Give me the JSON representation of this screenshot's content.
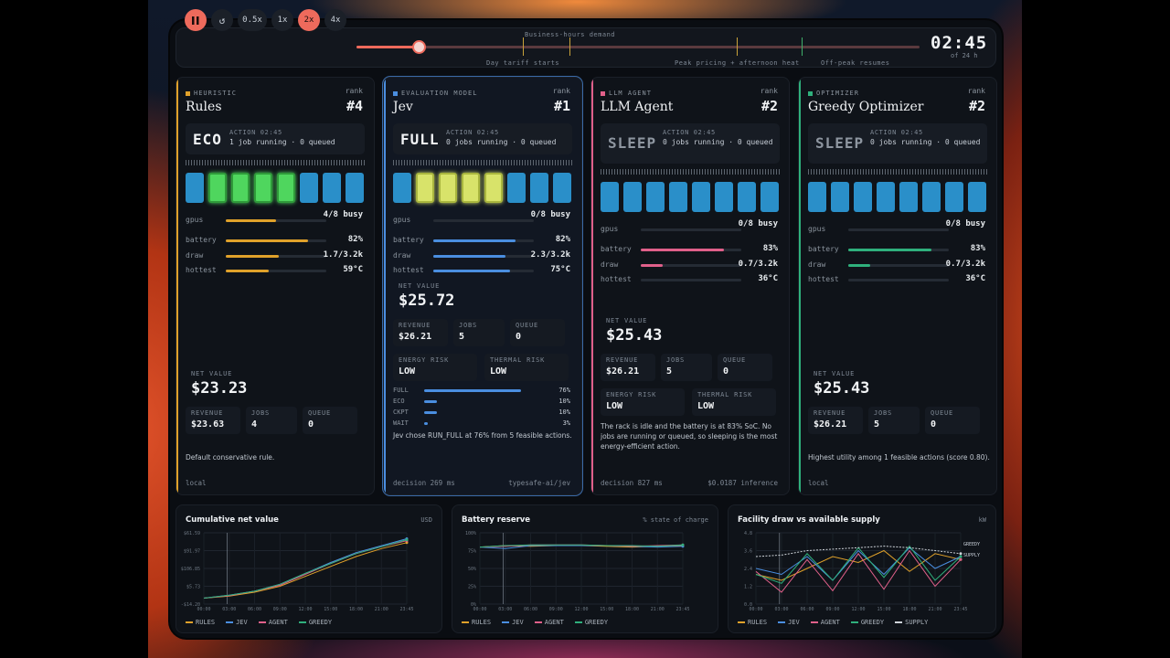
{
  "toolbar": {
    "pause_icon": "pause-icon",
    "restart_icon": "restart-icon",
    "speeds": [
      "0.5x",
      "1x",
      "2x",
      "4x"
    ],
    "active_speed": "2x",
    "progress": 0.11,
    "events": [
      {
        "label": "Business-hours demand",
        "at": 0.296,
        "pos": "top"
      },
      {
        "label": "Day tariff starts",
        "at": 0.296,
        "pos": "bottom"
      },
      {
        "label": "Peak pricing + afternoon heat",
        "at": 0.675,
        "pos": "bottom"
      },
      {
        "label": "Off-peak resumes",
        "at": 0.79,
        "pos": "bottom"
      }
    ],
    "clock": "02:45",
    "clock_sub": "of 24 h"
  },
  "panels": [
    {
      "category": "HEURISTIC",
      "name": "Rules",
      "rank_label": "rank",
      "rank": "#4",
      "accent": "#e0a12a",
      "action": {
        "word": "ECO",
        "caption": "ACTION 02:45",
        "detail": "1 job running · 0 queued"
      },
      "gpus_busy": 4,
      "gpus_total": 8,
      "metrics": [
        {
          "label": "gpus",
          "value": "4/8 busy",
          "fill": 0.5
        },
        {
          "label": "battery",
          "value": "82%",
          "fill": 0.82
        },
        {
          "label": "draw",
          "value": "1.7/3.2k",
          "fill": 0.53
        },
        {
          "label": "hottest",
          "value": "59°C",
          "fill": 0.43
        }
      ],
      "net": {
        "caption": "NET VALUE",
        "value": "$23.23"
      },
      "stats": [
        {
          "caption": "REVENUE",
          "value": "$23.63"
        },
        {
          "caption": "JOBS",
          "value": "4"
        },
        {
          "caption": "QUEUE",
          "value": "0"
        }
      ],
      "note": "Default conservative rule.",
      "foot_left": "local",
      "foot_right": ""
    },
    {
      "category": "EVALUATION MODEL",
      "name": "Jev",
      "rank_label": "rank",
      "rank": "#1",
      "accent": "#4a8ee0",
      "action": {
        "word": "FULL",
        "caption": "ACTION 02:45",
        "detail": "0 jobs running · 0 queued"
      },
      "gpus_busy": 0,
      "gpus_total": 8,
      "metrics": [
        {
          "label": "gpus",
          "value": "0/8 busy",
          "fill": 0
        },
        {
          "label": "battery",
          "value": "82%",
          "fill": 0.82
        },
        {
          "label": "draw",
          "value": "2.3/3.2k",
          "fill": 0.72
        },
        {
          "label": "hottest",
          "value": "75°C",
          "fill": 0.76
        }
      ],
      "net": {
        "caption": "NET VALUE",
        "value": "$25.72"
      },
      "stats": [
        {
          "caption": "REVENUE",
          "value": "$26.21"
        },
        {
          "caption": "JOBS",
          "value": "5"
        },
        {
          "caption": "QUEUE",
          "value": "0"
        }
      ],
      "risks": [
        {
          "caption": "ENERGY RISK",
          "value": "LOW"
        },
        {
          "caption": "THERMAL RISK",
          "value": "LOW"
        }
      ],
      "dist": [
        {
          "label": "FULL",
          "value": "76%",
          "frac": 0.76
        },
        {
          "label": "ECO",
          "value": "10%",
          "frac": 0.1
        },
        {
          "label": "CKPT",
          "value": "10%",
          "frac": 0.1
        },
        {
          "label": "WAIT",
          "value": "3%",
          "frac": 0.03
        }
      ],
      "note": "Jev chose RUN_FULL at 76% from 5 feasible actions.",
      "foot_left": "decision 269 ms",
      "foot_right": "typesafe-ai/jev"
    },
    {
      "category": "LLM AGENT",
      "name": "LLM Agent",
      "rank_label": "rank",
      "rank": "#2",
      "accent": "#e0608a",
      "action": {
        "word": "SLEEP",
        "caption": "ACTION 02:45",
        "detail": "0 jobs running · 0 queued"
      },
      "gpus_busy": 0,
      "gpus_total": 8,
      "metrics": [
        {
          "label": "gpus",
          "value": "0/8 busy",
          "fill": 0
        },
        {
          "label": "battery",
          "value": "83%",
          "fill": 0.83
        },
        {
          "label": "draw",
          "value": "0.7/3.2k",
          "fill": 0.22
        },
        {
          "label": "hottest",
          "value": "36°C",
          "fill": 0
        }
      ],
      "net": {
        "caption": "NET VALUE",
        "value": "$25.43"
      },
      "stats": [
        {
          "caption": "REVENUE",
          "value": "$26.21"
        },
        {
          "caption": "JOBS",
          "value": "5"
        },
        {
          "caption": "QUEUE",
          "value": "0"
        }
      ],
      "risks": [
        {
          "caption": "ENERGY RISK",
          "value": "LOW"
        },
        {
          "caption": "THERMAL RISK",
          "value": "LOW"
        }
      ],
      "note": "The rack is idle and the battery is at 83% SoC. No jobs are running or queued, so sleeping is the most energy-efficient action.",
      "foot_left": "decision 827 ms",
      "foot_right": "$0.0187 inference"
    },
    {
      "category": "OPTIMIZER",
      "name": "Greedy Optimizer",
      "rank_label": "rank",
      "rank": "#2",
      "accent": "#2fb07c",
      "action": {
        "word": "SLEEP",
        "caption": "ACTION 02:45",
        "detail": "0 jobs running · 0 queued"
      },
      "gpus_busy": 0,
      "gpus_total": 8,
      "metrics": [
        {
          "label": "gpus",
          "value": "0/8 busy",
          "fill": 0
        },
        {
          "label": "battery",
          "value": "83%",
          "fill": 0.83
        },
        {
          "label": "draw",
          "value": "0.7/3.2k",
          "fill": 0.22
        },
        {
          "label": "hottest",
          "value": "36°C",
          "fill": 0
        }
      ],
      "net": {
        "caption": "NET VALUE",
        "value": "$25.43"
      },
      "stats": [
        {
          "caption": "REVENUE",
          "value": "$26.21"
        },
        {
          "caption": "JOBS",
          "value": "5"
        },
        {
          "caption": "QUEUE",
          "value": "0"
        }
      ],
      "note": "Highest utility among 1 feasible actions (score 0.80).",
      "foot_left": "local",
      "foot_right": ""
    }
  ],
  "colors": {
    "rules": "#e0a12a",
    "jev": "#4a8ee0",
    "agent": "#e0608a",
    "greedy": "#2fb07c",
    "supply": "#cfd4da",
    "gpu_idle": "#2a8fc9",
    "gpu_eco": "#4fd65e",
    "gpu_full": "#d8e36a"
  },
  "charts": [
    {
      "title": "Cumulative net value",
      "unit": "USD",
      "yticks": [
        "$61.59",
        "$91.97",
        "$106.85",
        "$5.73",
        "-$14.20"
      ],
      "xticks": [
        "00:00",
        "03:00",
        "06:00",
        "09:00",
        "12:00",
        "15:00",
        "18:00",
        "21:00",
        "23:45"
      ],
      "legend": [
        "RULES",
        "JEV",
        "AGENT",
        "GREEDY"
      ]
    },
    {
      "title": "Battery reserve",
      "unit": "% state of charge",
      "yticks": [
        "100%",
        "75%",
        "50%",
        "25%",
        "0%"
      ],
      "xticks": [
        "00:00",
        "03:00",
        "06:00",
        "09:00",
        "12:00",
        "15:00",
        "18:00",
        "21:00",
        "23:45"
      ],
      "legend": [
        "RULES",
        "JEV",
        "AGENT",
        "GREEDY"
      ]
    },
    {
      "title": "Facility draw vs available supply",
      "unit": "kW",
      "yticks": [
        "4.8",
        "3.6",
        "2.4",
        "1.2",
        "0.0"
      ],
      "xticks": [
        "00:00",
        "03:00",
        "06:00",
        "09:00",
        "12:00",
        "15:00",
        "18:00",
        "21:00",
        "23:45"
      ],
      "legend": [
        "RULES",
        "JEV",
        "AGENT",
        "GREEDY",
        "SUPPLY"
      ],
      "end_labels": [
        "GREEDY",
        "SUPPLY"
      ]
    }
  ],
  "chart_data": [
    {
      "type": "line",
      "title": "Cumulative net value",
      "ylabel": "USD",
      "x": [
        "00:00",
        "03:00",
        "06:00",
        "09:00",
        "12:00",
        "15:00",
        "18:00",
        "21:00",
        "23:45"
      ],
      "series": [
        {
          "name": "RULES",
          "values": [
            0,
            2,
            6,
            12,
            22,
            32,
            42,
            50,
            56
          ]
        },
        {
          "name": "JEV",
          "values": [
            0,
            3,
            7,
            14,
            25,
            36,
            46,
            53,
            60
          ]
        },
        {
          "name": "AGENT",
          "values": [
            0,
            2.5,
            7,
            13,
            24,
            35,
            45,
            52,
            58
          ]
        },
        {
          "name": "GREEDY",
          "values": [
            0,
            3,
            7,
            14,
            25,
            35,
            45,
            52,
            59
          ]
        }
      ]
    },
    {
      "type": "line",
      "title": "Battery reserve",
      "ylabel": "% state of charge",
      "ylim": [
        0,
        100
      ],
      "x": [
        "00:00",
        "03:00",
        "06:00",
        "09:00",
        "12:00",
        "15:00",
        "18:00",
        "21:00",
        "23:45"
      ],
      "series": [
        {
          "name": "RULES",
          "values": [
            80,
            82,
            81,
            82,
            82,
            81,
            80,
            81,
            82
          ]
        },
        {
          "name": "JEV",
          "values": [
            80,
            78,
            82,
            82,
            82,
            82,
            81,
            80,
            81
          ]
        },
        {
          "name": "AGENT",
          "values": [
            80,
            81,
            83,
            83,
            83,
            82,
            81,
            82,
            83
          ]
        },
        {
          "name": "GREEDY",
          "values": [
            80,
            82,
            83,
            83,
            83,
            82,
            82,
            81,
            83
          ]
        }
      ]
    },
    {
      "type": "line",
      "title": "Facility draw vs available supply",
      "ylabel": "kW",
      "ylim": [
        0,
        4.8
      ],
      "x": [
        "00:00",
        "03:00",
        "06:00",
        "09:00",
        "12:00",
        "15:00",
        "18:00",
        "21:00",
        "23:45"
      ],
      "series": [
        {
          "name": "RULES",
          "values": [
            2.0,
            1.6,
            2.4,
            3.2,
            2.8,
            3.6,
            2.2,
            3.4,
            3.0
          ]
        },
        {
          "name": "JEV",
          "values": [
            2.4,
            2.0,
            3.2,
            1.6,
            3.6,
            2.0,
            3.8,
            2.4,
            3.2
          ]
        },
        {
          "name": "AGENT",
          "values": [
            2.2,
            0.8,
            3.0,
            0.9,
            3.4,
            1.0,
            3.6,
            1.2,
            3.0
          ]
        },
        {
          "name": "GREEDY",
          "values": [
            2.0,
            1.4,
            3.4,
            1.6,
            3.8,
            1.8,
            3.9,
            1.6,
            3.2
          ]
        },
        {
          "name": "SUPPLY",
          "values": [
            3.2,
            3.3,
            3.6,
            3.7,
            3.8,
            3.9,
            3.8,
            3.6,
            3.4
          ]
        }
      ]
    }
  ]
}
